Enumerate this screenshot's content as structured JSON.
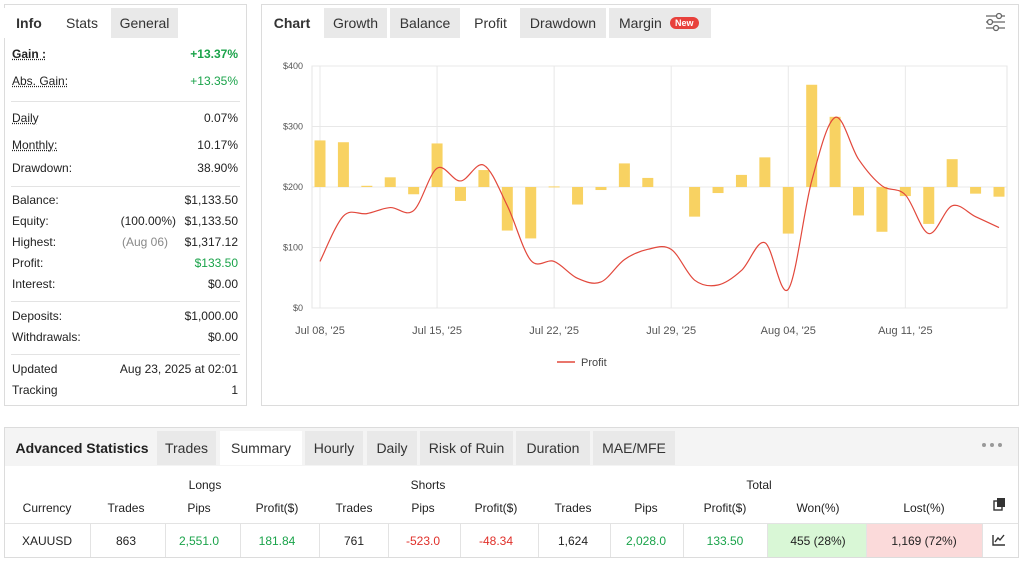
{
  "left_panel": {
    "tabs": [
      "Info",
      "Stats",
      "General"
    ],
    "rows": [
      {
        "label": "Gain :",
        "value": "+13.37%"
      },
      {
        "label": "Abs. Gain:",
        "value": "+13.35%"
      },
      {
        "label": "Daily",
        "value": "0.07%"
      },
      {
        "label": "Monthly:",
        "value": "10.17%"
      },
      {
        "label": "Drawdown:",
        "value": "38.90%"
      },
      {
        "label": "Balance:",
        "value": "$1,133.50"
      },
      {
        "label": "Equity:",
        "note": "(100.00%)",
        "value": "$1,133.50"
      },
      {
        "label": "Highest:",
        "note": "(Aug 06)",
        "value": "$1,317.12"
      },
      {
        "label": "Profit:",
        "value": "$133.50"
      },
      {
        "label": "Interest:",
        "value": "$0.00"
      },
      {
        "label": "Deposits:",
        "value": "$1,000.00"
      },
      {
        "label": "Withdrawals:",
        "value": "$0.00"
      },
      {
        "label": "Updated",
        "value": "Aug 23, 2025 at 02:01"
      },
      {
        "label": "Tracking",
        "value": "1"
      }
    ]
  },
  "chart_panel": {
    "tabs": [
      "Chart",
      "Growth",
      "Balance",
      "Profit",
      "Drawdown",
      "Margin"
    ],
    "badge": "New"
  },
  "chart_data": {
    "type": "combo",
    "categories": [
      "Jul 08, '25",
      null,
      null,
      null,
      null,
      "Jul 15, '25",
      null,
      null,
      null,
      null,
      "Jul 22, '25",
      null,
      null,
      null,
      null,
      "Jul 29, '25",
      null,
      null,
      null,
      null,
      "Aug 04, '25",
      null,
      null,
      null,
      null,
      "Aug 11, '25",
      null,
      null,
      null,
      null
    ],
    "series": [
      {
        "kind": "bar",
        "color": "#f8d262",
        "baseline": 200,
        "values": [
          277,
          274,
          202,
          216,
          188,
          272,
          177,
          228,
          128,
          115,
          201,
          171,
          195,
          239,
          215,
          null,
          151,
          190,
          220,
          249,
          123,
          369,
          316,
          153,
          126,
          185,
          139,
          246,
          189,
          184
        ]
      },
      {
        "kind": "line",
        "name": "Profit",
        "color": "#e2483c",
        "values": [
          77,
          152,
          156,
          166,
          161,
          231,
          210,
          236,
          169,
          79,
          77,
          49,
          43,
          80,
          97,
          97,
          46,
          38,
          62,
          108,
          31,
          210,
          315,
          246,
          202,
          187,
          123,
          169,
          151,
          133
        ]
      }
    ],
    "ylim": [
      0,
      400
    ],
    "yticks": [
      {
        "value": 0,
        "label": "$0"
      },
      {
        "value": 100,
        "label": "$100"
      },
      {
        "value": 200,
        "label": "$200"
      },
      {
        "value": 300,
        "label": "$300"
      },
      {
        "value": 400,
        "label": "$400"
      }
    ],
    "grid": true,
    "legend": "bottom"
  },
  "advanced_statistics": {
    "title": "Advanced Statistics",
    "tabs": [
      "Trades",
      "Summary",
      "Hourly",
      "Daily",
      "Risk of Ruin",
      "Duration",
      "MAE/MFE"
    ],
    "groups": [
      "Longs",
      "Shorts",
      "Total"
    ],
    "columns": [
      "Currency",
      "Trades",
      "Pips",
      "Profit($)",
      "Trades",
      "Pips",
      "Profit($)",
      "Trades",
      "Pips",
      "Profit($)",
      "Won(%)",
      "Lost(%)"
    ],
    "rows": [
      [
        "XAUUSD",
        "863",
        "2,551.0",
        "181.84",
        "761",
        "-523.0",
        "-48.34",
        "1,624",
        "2,028.0",
        "133.50",
        "455 (28%)",
        "1,169 (72%)"
      ]
    ]
  }
}
